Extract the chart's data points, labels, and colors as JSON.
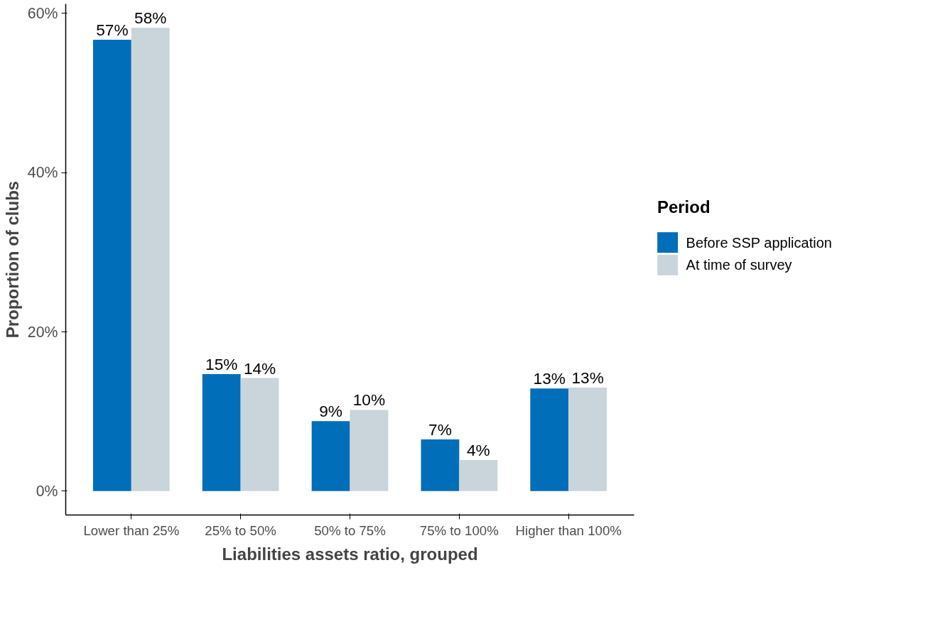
{
  "chart_data": {
    "type": "bar",
    "xlabel": "Liabilities assets ratio, grouped",
    "ylabel": "Proportion of clubs",
    "legend_title": "Period",
    "categories": [
      "Lower than 25%",
      "25% to 50%",
      "50% to 75%",
      "75% to 100%",
      "Higher than 100%"
    ],
    "series": [
      {
        "name": "Before SSP application",
        "color": "#006eb9",
        "values": [
          56.7,
          14.7,
          8.8,
          6.5,
          12.9
        ],
        "value_labels": [
          "57%",
          "15%",
          "9%",
          "7%",
          "13%"
        ]
      },
      {
        "name": "At time of survey",
        "color": "#c9d5da",
        "values": [
          58.2,
          14.2,
          10.2,
          3.9,
          13.0
        ],
        "value_labels": [
          "58%",
          "14%",
          "10%",
          "4%",
          "13%"
        ]
      }
    ],
    "ylim": [
      -3,
      61.2
    ],
    "yticks": [
      {
        "value": 0,
        "label": "0%"
      },
      {
        "value": 20,
        "label": "20%"
      },
      {
        "value": 40,
        "label": "40%"
      },
      {
        "value": 60,
        "label": "60%"
      }
    ],
    "grid": false,
    "legend": "right"
  }
}
